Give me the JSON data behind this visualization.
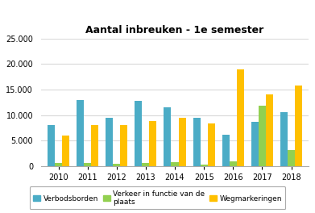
{
  "title": "Aantal inbreuken - 1e semester",
  "years": [
    2010,
    2011,
    2012,
    2013,
    2014,
    2015,
    2016,
    2017,
    2018
  ],
  "verbodsborden": [
    8000,
    13000,
    9500,
    12750,
    11500,
    9400,
    6200,
    8700,
    10600
  ],
  "verkeer": [
    600,
    600,
    450,
    600,
    850,
    300,
    900,
    11900,
    3100
  ],
  "wegmarkeringen": [
    6000,
    8000,
    8000,
    8750,
    9500,
    8300,
    19000,
    14100,
    15700
  ],
  "colors": {
    "verbodsborden": "#4bacc6",
    "verkeer": "#92d050",
    "wegmarkeringen": "#ffc000"
  },
  "ylim": [
    0,
    25000
  ],
  "yticks": [
    0,
    5000,
    10000,
    15000,
    20000,
    25000
  ],
  "legend_labels": [
    "Verbodsborden",
    "Verkeer in functie van de\nplaats",
    "Wegmarkeringen"
  ],
  "background": "#ffffff",
  "grid_color": "#d9d9d9",
  "title_fontsize": 9,
  "tick_fontsize": 7,
  "legend_fontsize": 6.5
}
